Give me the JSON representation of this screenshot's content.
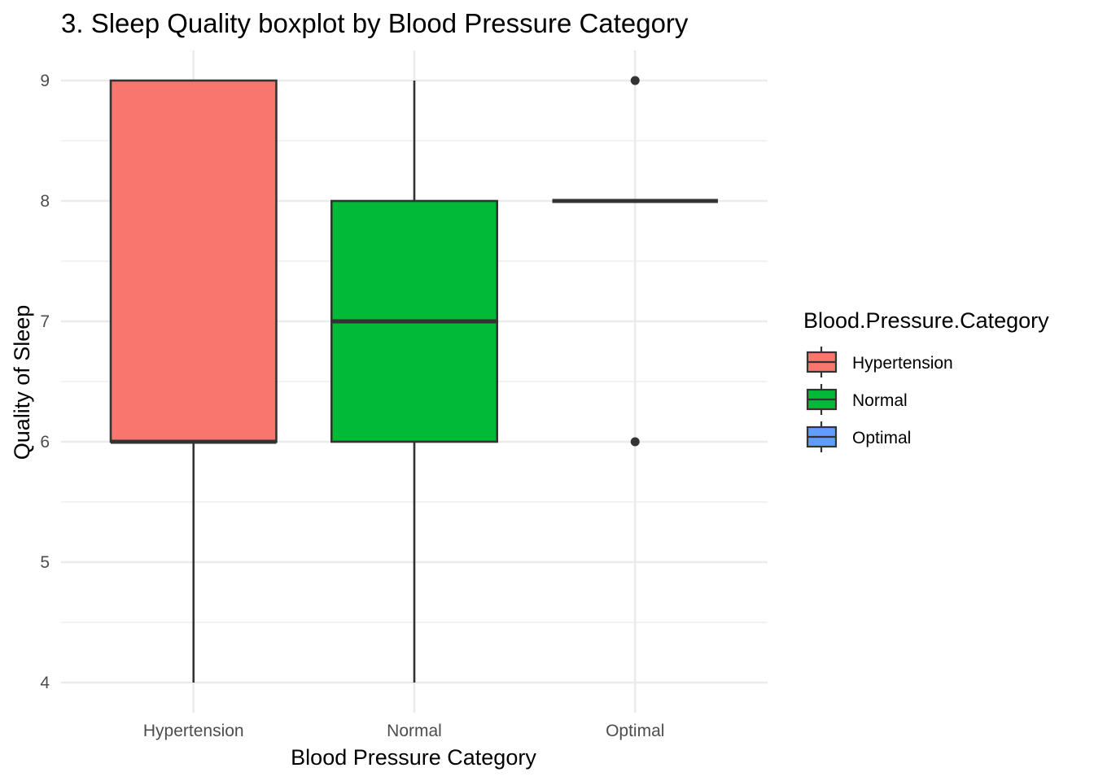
{
  "chart_data": {
    "type": "boxplot",
    "title": "3. Sleep Quality boxplot by Blood Pressure Category",
    "xlabel": "Blood Pressure Category",
    "ylabel": "Quality of Sleep",
    "ylim": [
      3.75,
      9.25
    ],
    "yticks": [
      4,
      5,
      6,
      7,
      8,
      9
    ],
    "grid": true,
    "legend": {
      "title": "Blood.Pressure.Category",
      "position": "right"
    },
    "categories": [
      "Hypertension",
      "Normal",
      "Optimal"
    ],
    "series": [
      {
        "name": "Hypertension",
        "color": "#F8766D",
        "whisker_low": 4,
        "q1": 6,
        "median": 6,
        "q3": 9,
        "whisker_high": 9,
        "outliers": []
      },
      {
        "name": "Normal",
        "color": "#00BA38",
        "whisker_low": 4,
        "q1": 6,
        "median": 7,
        "q3": 8,
        "whisker_high": 9,
        "outliers": []
      },
      {
        "name": "Optimal",
        "color": "#619CFF",
        "whisker_low": 8,
        "q1": 8,
        "median": 8,
        "q3": 8,
        "whisker_high": 8,
        "outliers": [
          9,
          6
        ]
      }
    ]
  }
}
